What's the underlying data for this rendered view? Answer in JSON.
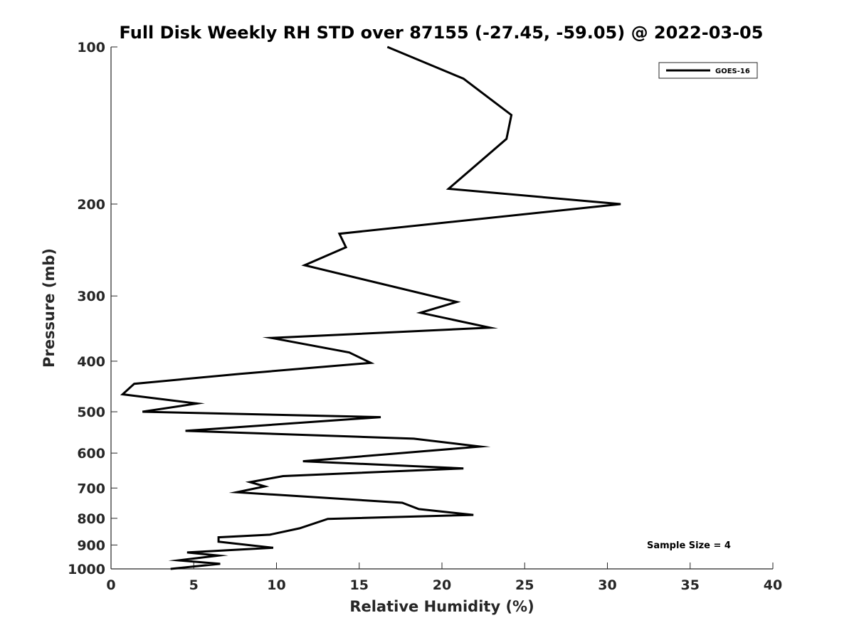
{
  "chart_data": {
    "type": "line",
    "title": "Full Disk Weekly RH STD over 87155 (-27.45, -59.05) @ 2022-03-05",
    "xlabel": "Relative Humidity (%)",
    "ylabel": "Pressure (mb)",
    "xlim": [
      0,
      40
    ],
    "ylim": [
      100,
      1000
    ],
    "yscale": "log",
    "reverse_y": true,
    "grid": false,
    "legend_position": "top-right",
    "x_ticks": [
      0,
      5,
      10,
      15,
      20,
      25,
      30,
      35,
      40
    ],
    "y_ticks": [
      100,
      200,
      300,
      400,
      500,
      600,
      700,
      800,
      900,
      1000
    ],
    "series": [
      {
        "name": "GOES-16",
        "color": "#000000",
        "x": [
          16.7,
          21.3,
          24.2,
          23.9,
          20.4,
          30.8,
          13.8,
          14.2,
          11.7,
          20.9,
          18.7,
          22.9,
          9.7,
          14.4,
          15.7,
          7.8,
          1.4,
          0.7,
          5.2,
          1.9,
          16.3,
          4.5,
          18.3,
          22.3,
          11.6,
          21.3,
          10.4,
          8.4,
          9.3,
          7.6,
          17.6,
          18.6,
          21.9,
          13.1,
          11.4,
          9.6,
          6.5,
          6.5,
          9.8,
          4.6,
          6.5,
          4.1,
          6.6,
          3.6
        ],
        "y": [
          100,
          115,
          135,
          150,
          187,
          200,
          228,
          242,
          262,
          308,
          323,
          345,
          361,
          385,
          403,
          423,
          442,
          463,
          482,
          500,
          512,
          544,
          563,
          583,
          622,
          642,
          664,
          682,
          695,
          713,
          747,
          768,
          788,
          802,
          836,
          860,
          870,
          887,
          911,
          930,
          943,
          963,
          978,
          1000
        ]
      }
    ],
    "annotations": [
      "Sample Size = 4"
    ]
  }
}
